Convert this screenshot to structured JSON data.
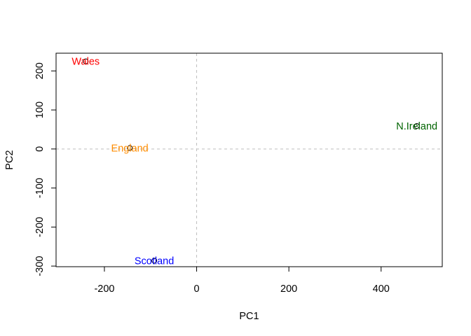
{
  "chart_data": {
    "type": "scatter",
    "xlabel": "PC1",
    "ylabel": "PC2",
    "xlim": [
      -304.8,
      532.6
    ],
    "ylim": [
      -301.6,
      245.4
    ],
    "x_ticks": [
      -200,
      0,
      200,
      400
    ],
    "y_ticks": [
      -300,
      -200,
      -100,
      0,
      100,
      200
    ],
    "reference_lines": {
      "x": 0,
      "y": 0,
      "style": "dashed",
      "color": "#bebebe"
    },
    "points": [
      {
        "label": "England",
        "x": -144.99,
        "y": 2.53,
        "color": "#ff8c00"
      },
      {
        "label": "Wales",
        "x": -240.53,
        "y": 224.65,
        "color": "#ff0000"
      },
      {
        "label": "Scotland",
        "x": -91.87,
        "y": -286.08,
        "color": "#0000ff"
      },
      {
        "label": "N.Ireland",
        "x": 477.39,
        "y": 58.9,
        "color": "#006400"
      }
    ]
  }
}
